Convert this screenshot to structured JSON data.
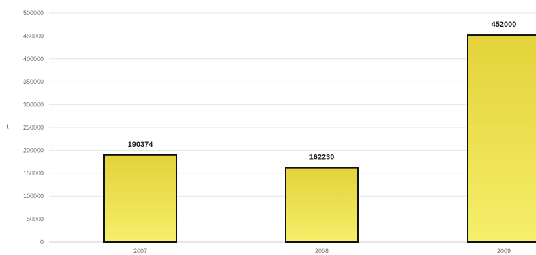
{
  "chart_data": {
    "type": "bar",
    "title": "",
    "xlabel": "",
    "ylabel": "t",
    "categories": [
      "2007",
      "2008",
      "2009"
    ],
    "values": [
      190374,
      162230,
      452000
    ],
    "data_labels": [
      "190374",
      "162230",
      "452000"
    ],
    "ylim": [
      0,
      500000
    ],
    "yticks": [
      0,
      50000,
      100000,
      150000,
      200000,
      250000,
      300000,
      350000,
      400000,
      450000,
      500000
    ],
    "grid": true,
    "legend": "none",
    "colors": {
      "bar_top": "#e3d23a",
      "bar_bottom": "#f6ef6a",
      "bar_edge": "#111111"
    }
  }
}
